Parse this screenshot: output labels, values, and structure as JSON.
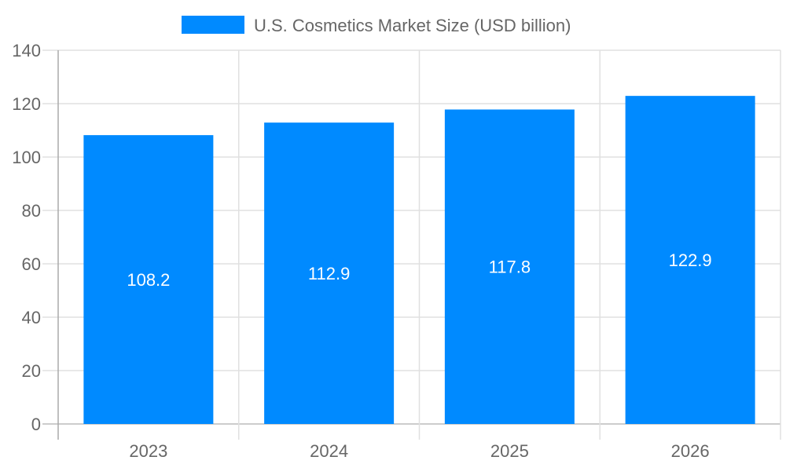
{
  "chart_data": {
    "type": "bar",
    "title": "",
    "xlabel": "",
    "ylabel": "",
    "categories": [
      "2023",
      "2024",
      "2025",
      "2026"
    ],
    "series": [
      {
        "name": "U.S. Cosmetics Market Size (USD billion)",
        "values": [
          108.2,
          112.9,
          117.8,
          122.9
        ],
        "color": "#008AFF"
      }
    ],
    "data_labels": [
      "108.2",
      "112.9",
      "117.8",
      "122.9"
    ],
    "ylim": [
      0,
      140
    ],
    "yticks": [
      0,
      20,
      40,
      60,
      80,
      100,
      120,
      140
    ],
    "grid": true,
    "legend_position": "top"
  }
}
